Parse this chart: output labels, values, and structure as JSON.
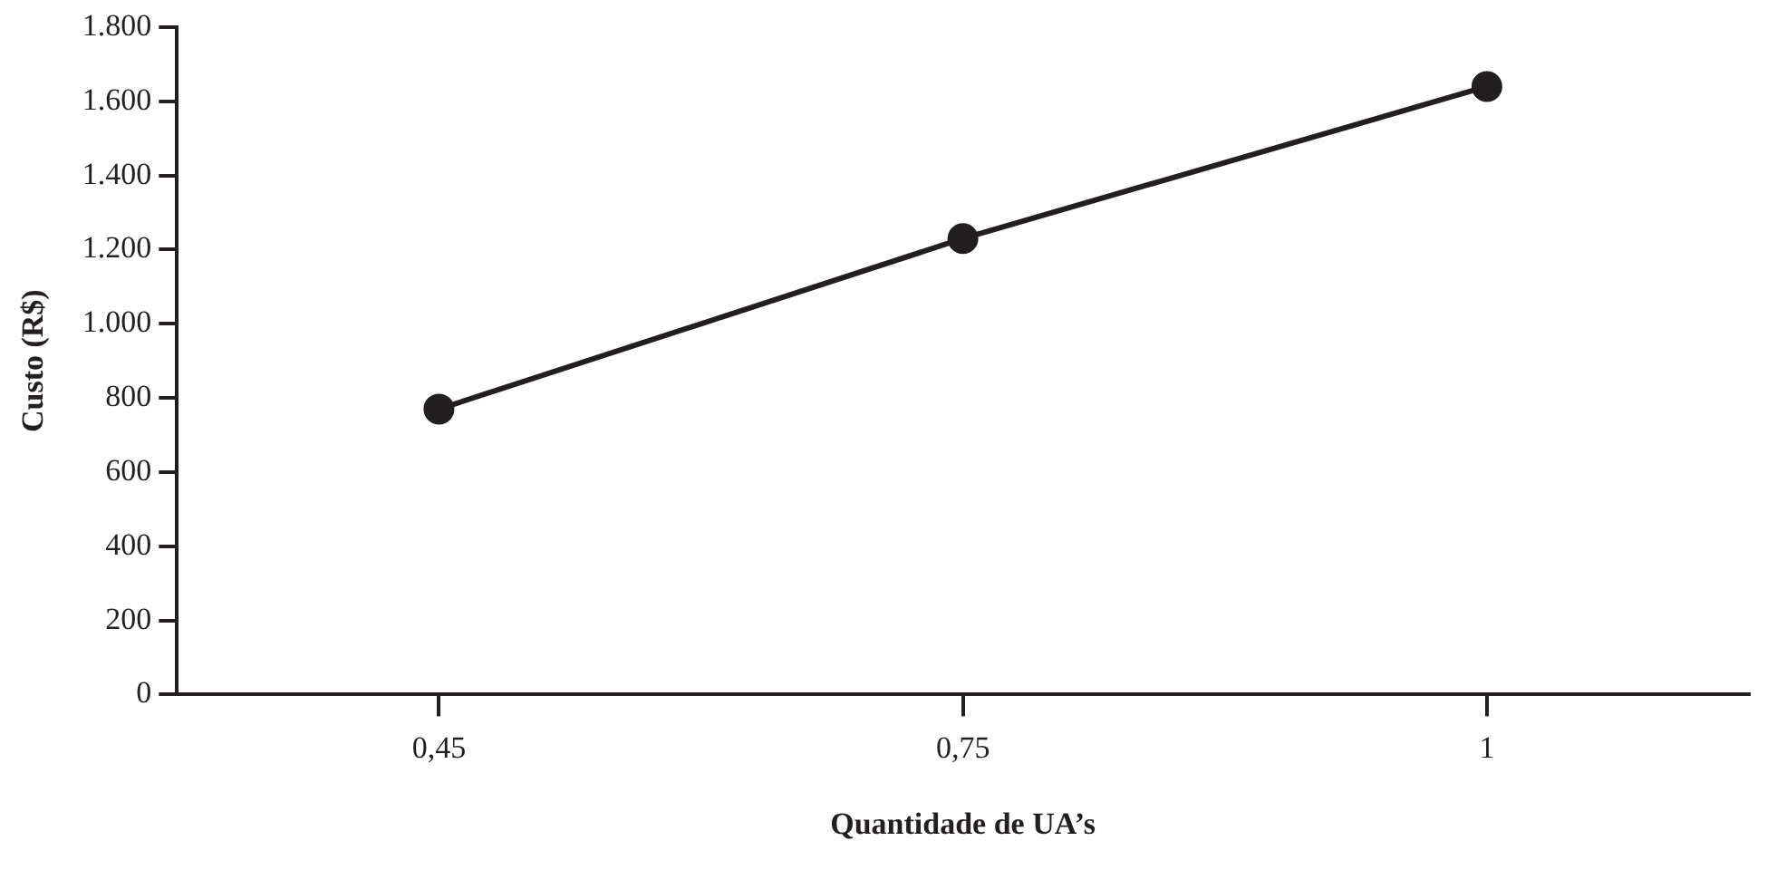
{
  "chart_data": {
    "type": "line",
    "xlabel": "Quantidade de UA’s",
    "ylabel": "Custo (R$)",
    "categories": [
      "0,45",
      "0,75",
      "1"
    ],
    "series": [
      {
        "color": "#231f20",
        "values": [
          770,
          1230,
          1640
        ]
      }
    ],
    "ylim": [
      0,
      1800
    ],
    "yticks": [
      0,
      {
        "value": 200,
        "label": "200"
      },
      {
        "value": 400,
        "label": "400"
      },
      {
        "value": 600,
        "label": "600"
      },
      {
        "value": 800,
        "label": "800"
      },
      {
        "value": 1000,
        "label": "1.000"
      },
      {
        "value": 1200,
        "label": "1.200"
      },
      {
        "value": 1400,
        "label": "1.400"
      },
      {
        "value": 1600,
        "label": "1.600"
      },
      {
        "value": 1800,
        "label": "1.800"
      }
    ],
    "grid": false,
    "legend": false,
    "marker": "circle",
    "line_style": "solid"
  }
}
